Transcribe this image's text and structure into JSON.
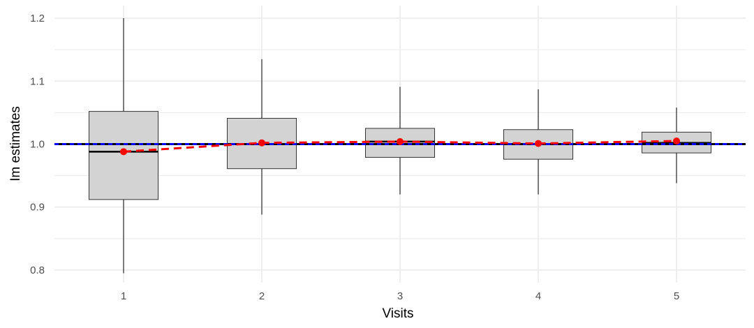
{
  "chart_data": {
    "type": "boxplot",
    "xlabel": "Visits",
    "ylabel": "Im estimates",
    "categories": [
      "1",
      "2",
      "3",
      "4",
      "5"
    ],
    "ylim": [
      0.78,
      1.22
    ],
    "yticks": [
      0.8,
      0.9,
      1.0,
      1.1,
      1.2
    ],
    "ytick_labels": [
      "0.8",
      "0.9",
      "1.0",
      "1.1",
      "1.2"
    ],
    "grid": true,
    "boxes": [
      {
        "category": "1",
        "whisker_low": 0.795,
        "q1": 0.912,
        "median": 0.988,
        "q3": 1.052,
        "whisker_high": 1.2
      },
      {
        "category": "2",
        "whisker_low": 0.888,
        "q1": 0.961,
        "median": 1.0,
        "q3": 1.041,
        "whisker_high": 1.135
      },
      {
        "category": "3",
        "whisker_low": 0.92,
        "q1": 0.979,
        "median": 1.004,
        "q3": 1.025,
        "whisker_high": 1.091
      },
      {
        "category": "4",
        "whisker_low": 0.92,
        "q1": 0.976,
        "median": 1.0,
        "q3": 1.023,
        "whisker_high": 1.087
      },
      {
        "category": "5",
        "whisker_low": 0.938,
        "q1": 0.986,
        "median": 1.002,
        "q3": 1.019,
        "whisker_high": 1.058
      }
    ],
    "means": [
      0.988,
      1.002,
      1.004,
      1.001,
      1.005
    ],
    "reference_value": 1.0,
    "colors": {
      "box_fill": "#d3d3d3",
      "box_stroke": "#333333",
      "median": "#000000",
      "mean_points": "#ff0000",
      "mean_line": "#ff0000",
      "reference_line": "#0000ff",
      "grid": "#ebebeb"
    }
  }
}
